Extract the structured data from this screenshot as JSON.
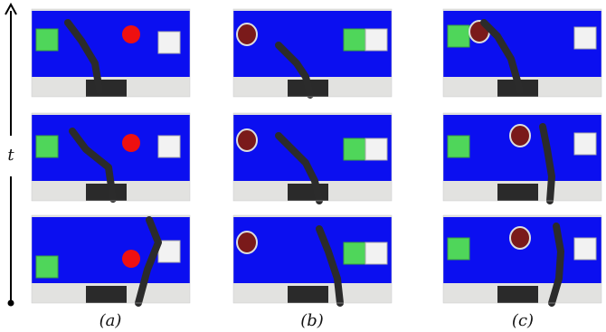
{
  "axis_label": "t",
  "panels": [
    {
      "label": "(a)"
    },
    {
      "label": "(b)"
    },
    {
      "label": "(c)"
    }
  ]
}
